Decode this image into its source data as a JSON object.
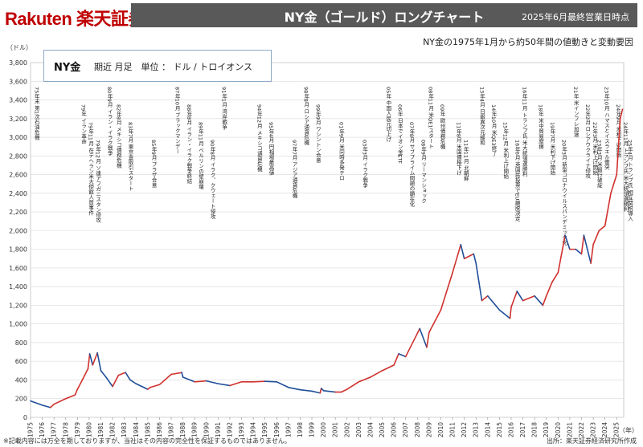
{
  "header": {
    "brand": "Rakuten 楽天証券",
    "title": "NY金（ゴールド）ロングチャート",
    "date_note": "2025年6月最終営業日時点"
  },
  "subtitle": "NY金の1975年1月から約50年間の値動きと変動要因",
  "legend": {
    "name": "NY金",
    "desc": "期近 月足　単位 ： ドル / トロイオンス"
  },
  "axis_unit_y": "（ドル）",
  "axis_unit_x": "（年）",
  "footnote_left": "※記載内容には万全を期しておりますが、当社はその内容の完全性を保証するものではありません。",
  "footnote_right": "出所：楽天証券経済研究所作成",
  "colors": {
    "up": "#d0312d",
    "down": "#1f4e99",
    "grid": "#d9d9d9"
  },
  "chart_data": {
    "type": "line",
    "title": "NY金（ゴールド）ロングチャート",
    "xlabel": "（年）",
    "ylabel": "（ドル）",
    "xlim": [
      1975,
      2025.6
    ],
    "ylim": [
      0,
      3800
    ],
    "y_ticks": [
      0,
      200,
      400,
      600,
      800,
      1000,
      1200,
      1400,
      1600,
      1800,
      2000,
      2200,
      2400,
      2600,
      2800,
      3000,
      3200,
      3400,
      3600,
      3800
    ],
    "x_ticks": [
      1975,
      1976,
      1977,
      1978,
      1979,
      1980,
      1981,
      1982,
      1983,
      1984,
      1985,
      1986,
      1987,
      1988,
      1989,
      1990,
      1991,
      1992,
      1993,
      1994,
      1995,
      1996,
      1997,
      1998,
      1999,
      2000,
      2001,
      2002,
      2003,
      2004,
      2005,
      2006,
      2007,
      2008,
      2009,
      2010,
      2011,
      2012,
      2013,
      2014,
      2015,
      2016,
      2017,
      2018,
      2019,
      2020,
      2021,
      2022,
      2023,
      2024,
      2025
    ],
    "series": [
      {
        "name": "NY金 期近 月足",
        "x": [
          1975,
          1976,
          1976.7,
          1977,
          1978,
          1978.8,
          1979,
          1979.5,
          1979.9,
          1980.05,
          1980.3,
          1980.7,
          1981,
          1981.5,
          1982,
          1982.5,
          1983.1,
          1983.5,
          1984,
          1985,
          1985.2,
          1986,
          1987,
          1987.9,
          1988,
          1989,
          1990,
          1991,
          1992,
          1993,
          1994,
          1995,
          1996,
          1997,
          1998,
          1999,
          1999.7,
          1999.8,
          2000,
          2001,
          2001.5,
          2002,
          2003,
          2004,
          2005,
          2006,
          2006.4,
          2007,
          2008,
          2008.2,
          2008.8,
          2009,
          2010,
          2011,
          2011.7,
          2012,
          2012.8,
          2013,
          2013.5,
          2014,
          2015,
          2015.9,
          2016,
          2016.5,
          2017,
          2018,
          2018.7,
          2019,
          2019.5,
          2020,
          2020.6,
          2021,
          2021.5,
          2022,
          2022.2,
          2022.8,
          2023,
          2023.5,
          2024,
          2024.5,
          2025,
          2025.3,
          2025.5
        ],
        "values": [
          175,
          130,
          105,
          140,
          200,
          240,
          300,
          420,
          520,
          680,
          560,
          690,
          500,
          420,
          330,
          450,
          480,
          400,
          360,
          300,
          320,
          350,
          460,
          480,
          430,
          380,
          390,
          360,
          340,
          380,
          380,
          385,
          380,
          320,
          295,
          280,
          260,
          310,
          285,
          270,
          270,
          300,
          380,
          430,
          500,
          560,
          680,
          650,
          900,
          950,
          750,
          910,
          1150,
          1550,
          1850,
          1700,
          1750,
          1650,
          1250,
          1300,
          1150,
          1060,
          1180,
          1350,
          1250,
          1300,
          1200,
          1300,
          1450,
          1550,
          1950,
          1800,
          1800,
          1750,
          1950,
          1650,
          1850,
          2000,
          2050,
          2400,
          2600,
          3200,
          3300
        ]
      }
    ],
    "annotations": [
      "75年末 第1次石油危機",
      "79年 イラン革命",
      "79年11月 在テヘラン米大使館人質事件",
      "79年12月 ソ連アフガニスタン侵攻",
      "80年9月 イラン・イラク戦争",
      "82年8月 メキシコ債務危機",
      "83年7月 東京金取引スタート",
      "85年9月 プラザ合意",
      "87年10月 ブラックマンデー",
      "88年8月 イラン・イラク戦争終結",
      "89年11月 ベルリンの壁崩壊",
      "90年8月 イラク、クウェート侵攻",
      "91年1月 湾岸戦争",
      "94年12月 メキシコ通貨危機",
      "95年4月 円相場最高値",
      "97年7月 アジア通貨危機",
      "98年8月 ロシア通貨危機",
      "99年9月 ワシントン合意",
      "01年9月 米同時多発テロ",
      "03年3月 イラク戦争",
      "05年 中国人民元切上げ",
      "06年 日本でイオン金ETF",
      "07年8月 サブプライム問題の顕在化",
      "08年9月 リーマンショック",
      "08年11月 米QE1スタート",
      "09年 欧州債務危機",
      "11年8月 米国債格下げ",
      "11年11月 北朝鮮",
      "13年4月 日銀異次元緩和",
      "14年10月 米QE3終了",
      "15年12月 米利上げ開始",
      "16年6月 英国民投票でEU離脱決定",
      "16年11月 トランプ氏 米大統領選勝利",
      "18年 米中貿易摩擦",
      "19年7月 米利下げ開始",
      "20年3月 新型コロナウイルスパンデミック化",
      "21年 米インフレ加速",
      "22年2月 ロシアウクライナ侵攻",
      "22年3月 米利上げ開始",
      "23年3月 米銀行破綻",
      "23年10月 ハマスとイスラエル衝突",
      "24年9月 米利下げ開始",
      "24年11月 トランプ氏 米大統領選勝利",
      "25年4月 トランプ氏 相互関税導入"
    ]
  }
}
